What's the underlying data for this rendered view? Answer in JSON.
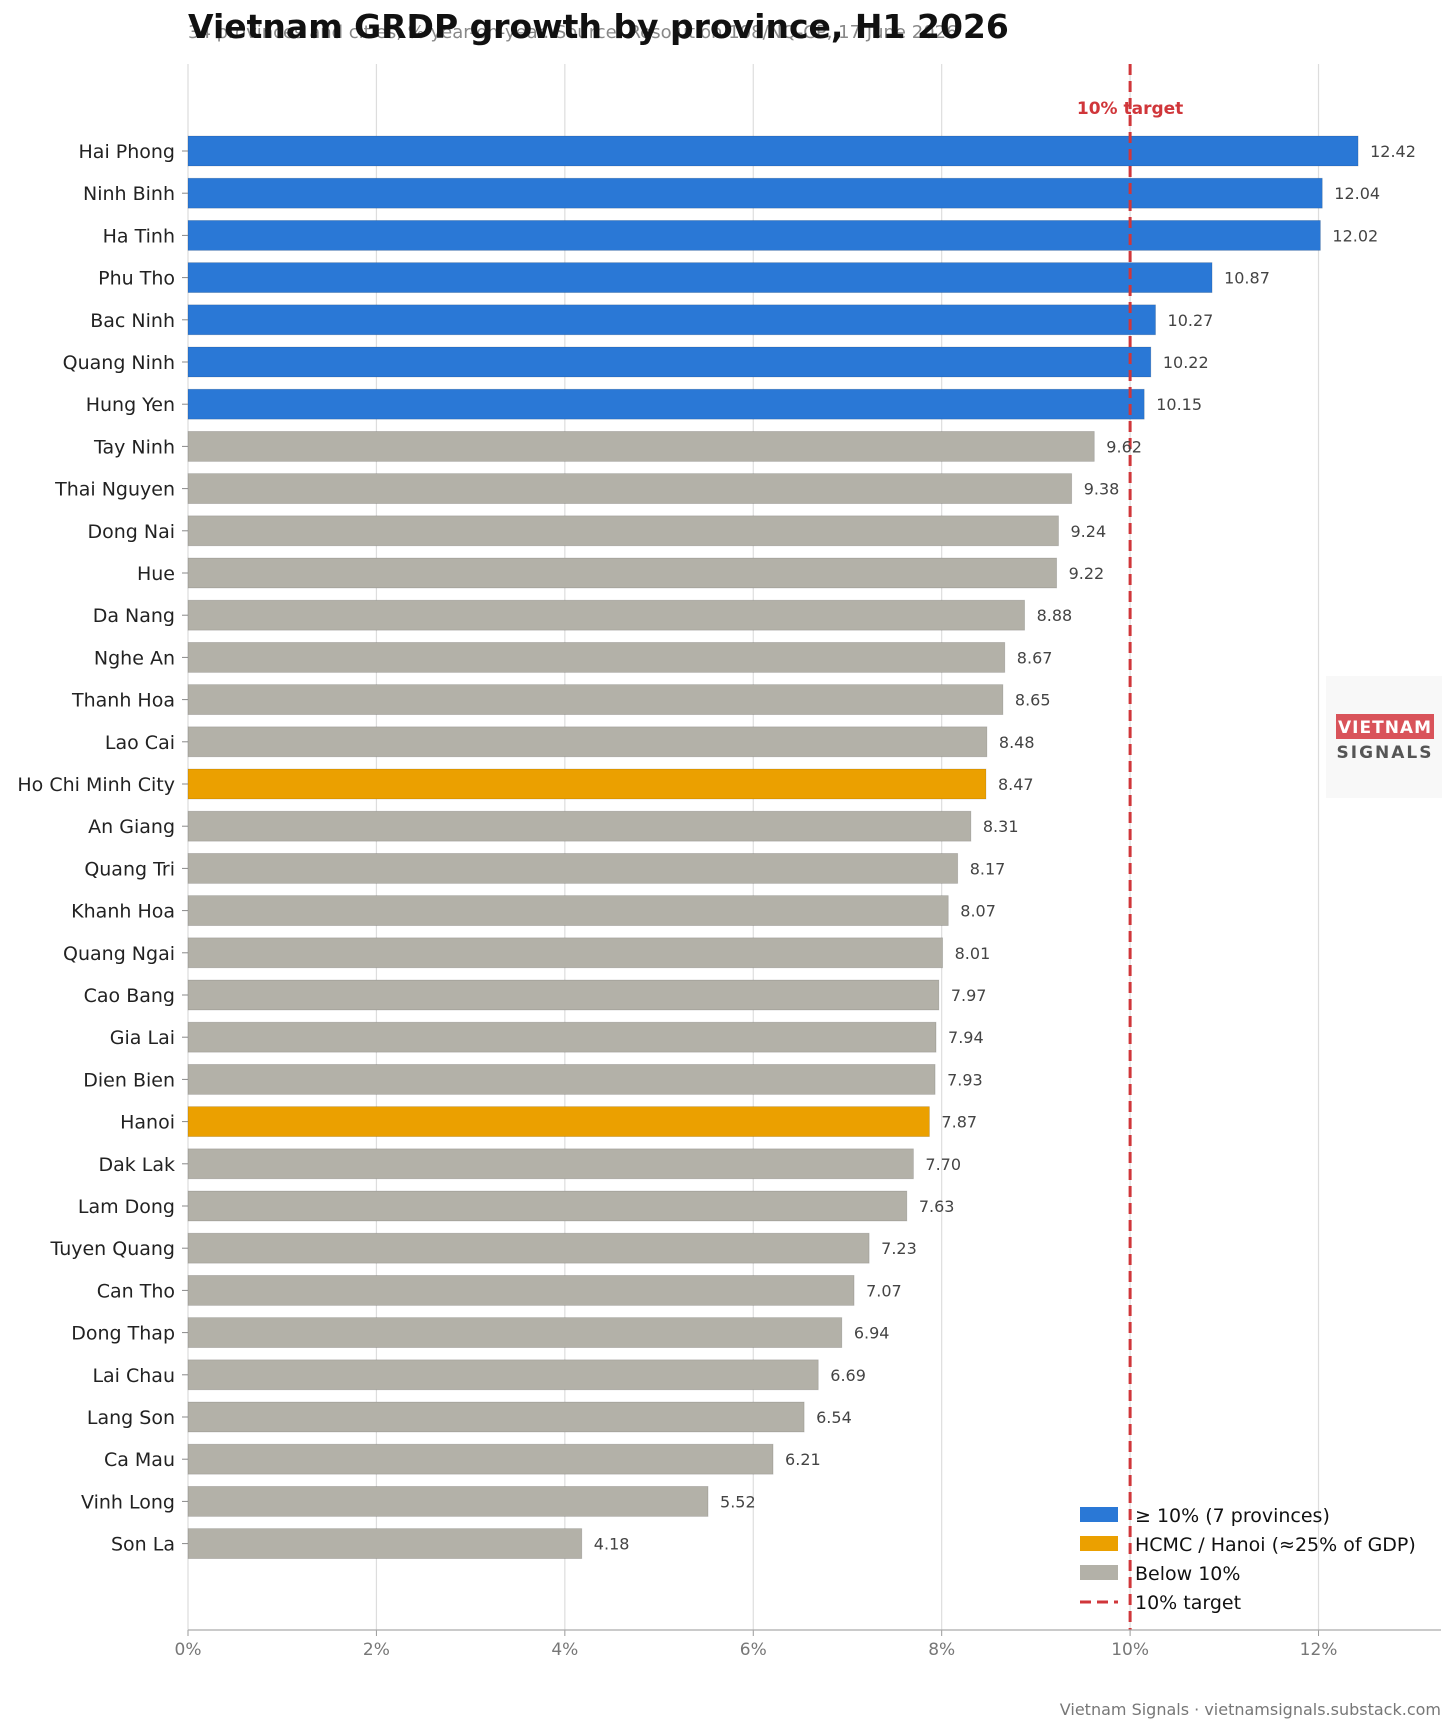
{
  "chart_data": {
    "type": "bar",
    "orientation": "horizontal",
    "title": "Vietnam GRDP growth by province, H1 2026",
    "subtitle": "34 provinces and cities, % year-on-year. Source: Resolution 108/NQ-CP, 17 June 2026",
    "categories": [
      "Hai Phong",
      "Ninh Binh",
      "Ha Tinh",
      "Phu Tho",
      "Bac Ninh",
      "Quang Ninh",
      "Hung Yen",
      "Tay Ninh",
      "Thai Nguyen",
      "Dong Nai",
      "Hue",
      "Da Nang",
      "Nghe An",
      "Thanh Hoa",
      "Lao Cai",
      "Ho Chi Minh City",
      "An Giang",
      "Quang Tri",
      "Khanh Hoa",
      "Quang Ngai",
      "Cao Bang",
      "Gia Lai",
      "Dien Bien",
      "Hanoi",
      "Dak Lak",
      "Lam Dong",
      "Tuyen Quang",
      "Can Tho",
      "Dong Thap",
      "Lai Chau",
      "Lang Son",
      "Ca Mau",
      "Vinh Long",
      "Son La"
    ],
    "values": [
      12.42,
      12.04,
      12.02,
      10.87,
      10.27,
      10.22,
      10.15,
      9.62,
      9.38,
      9.24,
      9.22,
      8.88,
      8.67,
      8.65,
      8.48,
      8.47,
      8.31,
      8.17,
      8.07,
      8.01,
      7.97,
      7.94,
      7.93,
      7.87,
      7.7,
      7.63,
      7.23,
      7.07,
      6.94,
      6.69,
      6.54,
      6.21,
      5.52,
      4.18
    ],
    "value_labels": [
      "12.42",
      "12.04",
      "12.02",
      "10.87",
      "10.27",
      "10.22",
      "10.15",
      "9.62",
      "9.38",
      "9.24",
      "9.22",
      "8.88",
      "8.67",
      "8.65",
      "8.48",
      "8.47",
      "8.31",
      "8.17",
      "8.07",
      "8.01",
      "7.97",
      "7.94",
      "7.93",
      "7.87",
      "7.70",
      "7.63",
      "7.23",
      "7.07",
      "6.94",
      "6.69",
      "6.54",
      "6.21",
      "5.52",
      "4.18"
    ],
    "groups": [
      "high",
      "high",
      "high",
      "high",
      "high",
      "high",
      "high",
      "below",
      "below",
      "below",
      "below",
      "below",
      "below",
      "below",
      "below",
      "key",
      "below",
      "below",
      "below",
      "below",
      "below",
      "below",
      "below",
      "key",
      "below",
      "below",
      "below",
      "below",
      "below",
      "below",
      "below",
      "below",
      "below",
      "below"
    ],
    "colors": {
      "high": "#2a78d6",
      "key": "#eba000",
      "below": "#b3b1a8",
      "target": "#d0363a"
    },
    "xlim": [
      0,
      13.3
    ],
    "xticks": [
      0,
      2,
      4,
      6,
      8,
      10,
      12
    ],
    "xtick_labels": [
      "0%",
      "2%",
      "4%",
      "6%",
      "8%",
      "10%",
      "12%"
    ],
    "target_value": 10,
    "target_label": "10% target",
    "grid": "vertical",
    "legend_position": "bottom-right",
    "legend": [
      {
        "label": "≥ 10% (7 provinces)",
        "kind": "high"
      },
      {
        "label": "HCMC / Hanoi (≈25% of GDP)",
        "kind": "key"
      },
      {
        "label": "Below 10%",
        "kind": "below"
      },
      {
        "label": "10% target",
        "kind": "target"
      }
    ]
  },
  "logo": {
    "line1": "VIETNAM",
    "line2": "SIGNALS"
  },
  "footer": "Vietnam Signals  ·  vietnamsignals.substack.com"
}
